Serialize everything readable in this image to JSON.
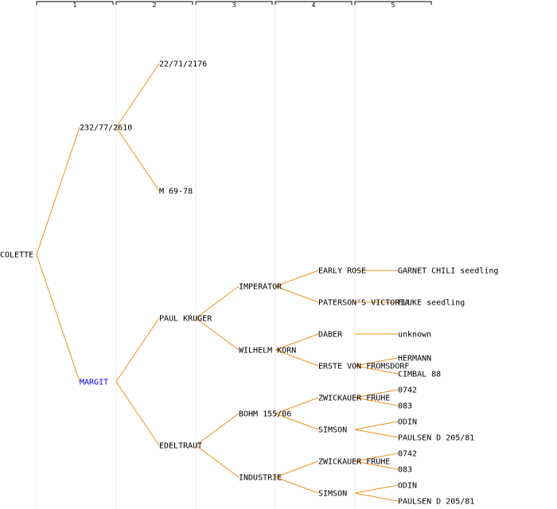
{
  "accent": {
    "edge": "#f0901e",
    "highlight": "#0000dd"
  },
  "columns": [
    "1",
    "2",
    "3",
    "4",
    "5"
  ],
  "root": {
    "name": "COLETTE",
    "parents": [
      {
        "name": "232/77/2610",
        "parents": [
          {
            "name": "22/71/2176"
          },
          {
            "name": "M 69-78"
          }
        ]
      },
      {
        "name": "MARGIT",
        "highlight": true,
        "parents": [
          {
            "name": "PAUL KRUGER",
            "parents": [
              {
                "name": "IMPERATOR",
                "parents": [
                  {
                    "name": "EARLY ROSE",
                    "parents": [
                      {
                        "name": "GARNET CHILI seedling"
                      }
                    ]
                  },
                  {
                    "name": "PATERSON'S VICTORIA",
                    "parents": [
                      {
                        "name": "FLUKE seedling"
                      }
                    ]
                  }
                ]
              },
              {
                "name": "WILHELM KORN",
                "parents": [
                  {
                    "name": "DABER",
                    "parents": [
                      {
                        "name": "unknown"
                      }
                    ]
                  },
                  {
                    "name": "ERSTE VON FROMSDORF",
                    "parents": [
                      {
                        "name": "HERMANN"
                      },
                      {
                        "name": "CIMBAL 88"
                      }
                    ]
                  }
                ]
              }
            ]
          },
          {
            "name": "EDELTRAUT",
            "parents": [
              {
                "name": "BOHM 155/06",
                "parents": [
                  {
                    "name": "ZWICKAUER FRUHE",
                    "parents": [
                      {
                        "name": "0742"
                      },
                      {
                        "name": "083"
                      }
                    ]
                  },
                  {
                    "name": "SIMSON",
                    "parents": [
                      {
                        "name": "ODIN"
                      },
                      {
                        "name": "PAULSEN D 205/81"
                      }
                    ]
                  }
                ]
              },
              {
                "name": "INDUSTRIE",
                "parents": [
                  {
                    "name": "ZWICKAUER FRUHE",
                    "parents": [
                      {
                        "name": "0742"
                      },
                      {
                        "name": "083"
                      }
                    ]
                  },
                  {
                    "name": "SIMSON",
                    "parents": [
                      {
                        "name": "ODIN"
                      },
                      {
                        "name": "PAULSEN D 205/81"
                      }
                    ]
                  }
                ]
              }
            ]
          }
        ]
      }
    ]
  }
}
